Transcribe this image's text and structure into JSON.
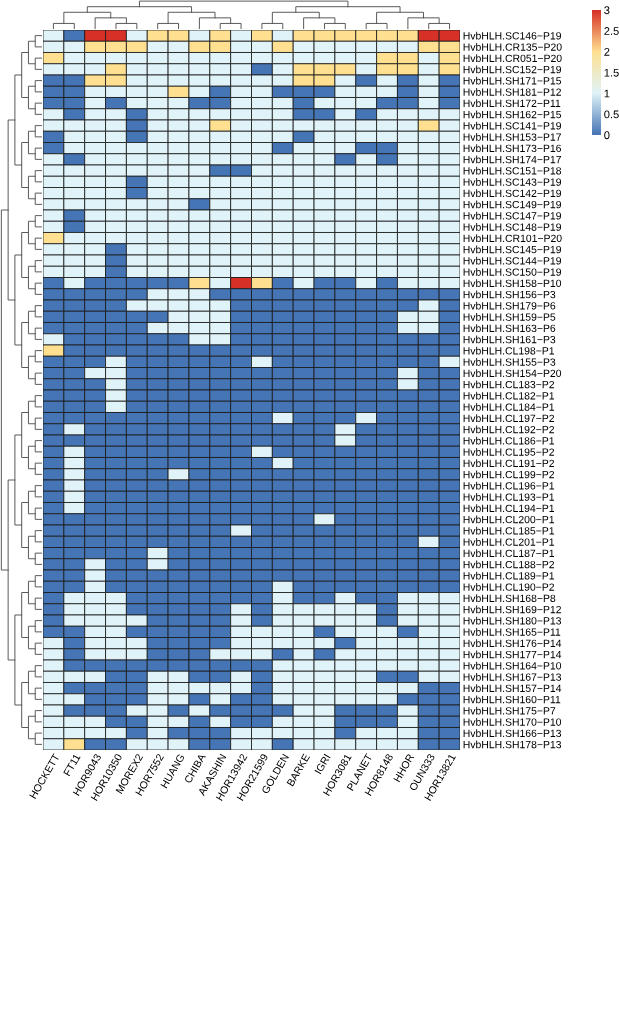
{
  "chart_data": {
    "type": "heatmap",
    "categories": [
      "HOCKETT",
      "FT11",
      "HOR9043",
      "HOR10350",
      "MOREX2",
      "HOR7552",
      "HUANG",
      "CHIBA",
      "AKASHIN",
      "HOR13942",
      "HOR21599",
      "GOLDEN",
      "BARKE",
      "IGRI",
      "HOR3081",
      "PLANET",
      "HOR8148",
      "HHOR",
      "OUN333",
      "HOR13821"
    ],
    "y_categories": [
      "HvbHLH.SC146−P19",
      "HvbHLH.CR135−P20",
      "HvbHLH.CR051−P20",
      "HvbHLH.SC152−P19",
      "HvbHLH.SH171−P15",
      "HvbHLH.SH181−P12",
      "HvbHLH.SH172−P11",
      "HvbHLH.SH162−P15",
      "HvbHLH.SC141−P19",
      "HvbHLH.SH153−P17",
      "HvbHLH.SH173−P16",
      "HvbHLH.SH174−P17",
      "HvbHLH.SC151−P18",
      "HvbHLH.SC143−P19",
      "HvbHLH.SC142−P19",
      "HvbHLH.SC149−P19",
      "HvbHLH.SC147−P19",
      "HvbHLH.SC148−P19",
      "HvbHLH.CR101−P20",
      "HvbHLH.SC145−P19",
      "HvbHLH.SC144−P19",
      "HvbHLH.SC150−P19",
      "HvbHLH.SH158−P10",
      "HvbHLH.SH156−P3",
      "HvbHLH.SH179−P6",
      "HvbHLH.SH159−P5",
      "HvbHLH.SH163−P6",
      "HvbHLH.SH161−P3",
      "HvbHLH.CL198−P1",
      "HvbHLH.SH155−P3",
      "HvbHLH.SH154−P20",
      "HvbHLH.CL183−P2",
      "HvbHLH.CL182−P1",
      "HvbHLH.CL184−P1",
      "HvbHLH.CL197−P2",
      "HvbHLH.CL192−P2",
      "HvbHLH.CL186−P1",
      "HvbHLH.CL195−P2",
      "HvbHLH.CL191−P2",
      "HvbHLH.CL199−P2",
      "HvbHLH.CL196−P1",
      "HvbHLH.CL193−P1",
      "HvbHLH.CL194−P1",
      "HvbHLH.CL200−P1",
      "HvbHLH.CL185−P1",
      "HvbHLH.CL201−P1",
      "HvbHLH.CL187−P1",
      "HvbHLH.CL188−P2",
      "HvbHLH.CL189−P1",
      "HvbHLH.CL190−P2",
      "HvbHLH.SH168−P8",
      "HvbHLH.SH169−P12",
      "HvbHLH.SH180−P13",
      "HvbHLH.SH165−P11",
      "HvbHLH.SH176−P14",
      "HvbHLH.SH177−P14",
      "HvbHLH.SH164−P10",
      "HvbHLH.SH167−P13",
      "HvbHLH.SH157−P14",
      "HvbHLH.SH160−P11",
      "HvbHLH.SH175−P7",
      "HvbHLH.SH170−P10",
      "HvbHLH.SH166−P13",
      "HvbHLH.SH178−P13"
    ],
    "cells": [
      [
        1,
        0,
        3,
        3,
        1,
        2,
        2,
        1,
        2,
        1,
        2,
        1,
        2,
        2,
        2,
        2,
        2,
        2,
        3,
        3
      ],
      [
        1,
        1,
        2,
        2,
        2,
        1,
        1,
        2,
        2,
        1,
        1,
        2,
        1,
        1,
        1,
        1,
        1,
        1,
        2,
        2
      ],
      [
        2,
        1,
        1,
        1,
        1,
        1,
        1,
        1,
        1,
        1,
        1,
        1,
        1,
        1,
        1,
        1,
        2,
        2,
        1,
        2
      ],
      [
        1,
        1,
        1,
        2,
        1,
        1,
        1,
        1,
        1,
        1,
        0,
        1,
        2,
        2,
        2,
        1,
        2,
        2,
        1,
        2
      ],
      [
        0,
        0,
        2,
        2,
        1,
        1,
        1,
        1,
        1,
        1,
        1,
        1,
        2,
        2,
        1,
        0,
        1,
        0,
        1,
        0
      ],
      [
        0,
        0,
        1,
        1,
        1,
        1,
        2,
        1,
        0,
        1,
        1,
        0,
        0,
        0,
        1,
        1,
        1,
        0,
        1,
        0
      ],
      [
        0,
        0,
        1,
        0,
        1,
        1,
        1,
        0,
        0,
        1,
        1,
        1,
        0,
        1,
        1,
        1,
        0,
        0,
        1,
        0
      ],
      [
        1,
        0,
        1,
        1,
        0,
        1,
        1,
        1,
        1,
        1,
        1,
        1,
        0,
        0,
        1,
        0,
        1,
        1,
        1,
        1
      ],
      [
        1,
        1,
        1,
        1,
        0,
        1,
        1,
        1,
        2,
        1,
        1,
        1,
        1,
        1,
        1,
        1,
        1,
        1,
        2,
        1
      ],
      [
        0,
        1,
        1,
        1,
        0,
        1,
        1,
        1,
        1,
        1,
        1,
        1,
        0,
        1,
        1,
        1,
        1,
        1,
        1,
        1
      ],
      [
        0,
        1,
        1,
        1,
        1,
        1,
        1,
        1,
        1,
        1,
        1,
        0,
        1,
        1,
        1,
        0,
        0,
        1,
        1,
        1
      ],
      [
        1,
        0,
        1,
        1,
        1,
        1,
        1,
        1,
        1,
        1,
        1,
        1,
        1,
        1,
        0,
        1,
        0,
        1,
        1,
        1
      ],
      [
        1,
        1,
        1,
        1,
        1,
        1,
        1,
        1,
        0,
        0,
        1,
        1,
        1,
        1,
        1,
        1,
        1,
        1,
        1,
        1
      ],
      [
        1,
        1,
        1,
        1,
        0,
        1,
        1,
        1,
        1,
        1,
        1,
        1,
        1,
        1,
        1,
        1,
        1,
        1,
        1,
        1
      ],
      [
        1,
        1,
        1,
        1,
        0,
        1,
        1,
        1,
        1,
        1,
        1,
        1,
        1,
        1,
        1,
        1,
        1,
        1,
        1,
        1
      ],
      [
        1,
        1,
        1,
        1,
        1,
        1,
        1,
        0,
        1,
        1,
        1,
        1,
        1,
        1,
        1,
        1,
        1,
        1,
        1,
        1
      ],
      [
        1,
        0,
        1,
        1,
        1,
        1,
        1,
        1,
        1,
        1,
        1,
        1,
        1,
        1,
        1,
        1,
        1,
        1,
        1,
        1
      ],
      [
        1,
        0,
        1,
        1,
        1,
        1,
        1,
        1,
        1,
        1,
        1,
        1,
        1,
        1,
        1,
        1,
        1,
        1,
        1,
        1
      ],
      [
        2,
        1,
        1,
        1,
        1,
        1,
        1,
        1,
        1,
        1,
        1,
        1,
        1,
        1,
        1,
        1,
        1,
        1,
        1,
        1
      ],
      [
        1,
        1,
        1,
        0,
        1,
        1,
        1,
        1,
        1,
        1,
        1,
        1,
        1,
        1,
        1,
        1,
        1,
        1,
        1,
        1
      ],
      [
        1,
        1,
        1,
        0,
        1,
        1,
        1,
        1,
        1,
        1,
        1,
        1,
        1,
        1,
        1,
        1,
        1,
        1,
        1,
        1
      ],
      [
        1,
        1,
        1,
        0,
        1,
        1,
        1,
        1,
        1,
        1,
        1,
        1,
        1,
        1,
        1,
        1,
        1,
        1,
        1,
        1
      ],
      [
        0,
        1,
        0,
        0,
        0,
        0,
        0,
        2,
        1,
        3,
        2,
        0,
        1,
        0,
        0,
        1,
        0,
        1,
        1,
        1
      ],
      [
        0,
        0,
        0,
        0,
        0,
        1,
        1,
        1,
        0,
        0,
        0,
        0,
        0,
        0,
        0,
        0,
        0,
        0,
        0,
        0
      ],
      [
        0,
        0,
        0,
        0,
        1,
        1,
        1,
        1,
        1,
        0,
        0,
        0,
        0,
        0,
        0,
        0,
        0,
        0,
        1,
        0
      ],
      [
        0,
        0,
        0,
        0,
        0,
        0,
        1,
        1,
        1,
        0,
        0,
        0,
        0,
        0,
        0,
        0,
        0,
        1,
        1,
        0
      ],
      [
        0,
        0,
        0,
        0,
        0,
        1,
        1,
        1,
        1,
        0,
        0,
        0,
        0,
        0,
        0,
        0,
        0,
        1,
        1,
        0
      ],
      [
        1,
        0,
        0,
        0,
        0,
        0,
        0,
        1,
        1,
        0,
        0,
        0,
        0,
        0,
        0,
        0,
        0,
        0,
        0,
        0
      ],
      [
        2,
        0,
        0,
        0,
        0,
        0,
        0,
        0,
        0,
        0,
        0,
        0,
        0,
        0,
        0,
        0,
        0,
        0,
        0,
        0
      ],
      [
        0,
        0,
        0,
        1,
        0,
        0,
        0,
        0,
        0,
        0,
        1,
        0,
        0,
        0,
        0,
        0,
        0,
        0,
        0,
        1
      ],
      [
        0,
        0,
        1,
        1,
        0,
        0,
        0,
        0,
        0,
        0,
        0,
        0,
        0,
        0,
        0,
        0,
        0,
        1,
        0,
        0
      ],
      [
        0,
        0,
        0,
        1,
        0,
        0,
        0,
        0,
        0,
        0,
        0,
        0,
        0,
        0,
        0,
        0,
        0,
        1,
        0,
        0
      ],
      [
        0,
        0,
        0,
        1,
        0,
        0,
        0,
        0,
        0,
        0,
        0,
        0,
        0,
        0,
        0,
        0,
        0,
        0,
        0,
        0
      ],
      [
        0,
        0,
        0,
        1,
        0,
        0,
        0,
        0,
        0,
        0,
        0,
        0,
        0,
        0,
        0,
        0,
        0,
        0,
        0,
        0
      ],
      [
        0,
        0,
        0,
        0,
        0,
        0,
        0,
        0,
        0,
        0,
        0,
        1,
        0,
        0,
        0,
        1,
        0,
        0,
        0,
        0
      ],
      [
        0,
        1,
        0,
        0,
        0,
        0,
        0,
        0,
        0,
        0,
        0,
        0,
        0,
        0,
        1,
        0,
        0,
        0,
        0,
        0
      ],
      [
        0,
        0,
        0,
        0,
        0,
        0,
        0,
        0,
        0,
        0,
        0,
        0,
        0,
        0,
        1,
        0,
        0,
        0,
        0,
        0
      ],
      [
        0,
        1,
        0,
        0,
        0,
        0,
        0,
        0,
        0,
        0,
        1,
        0,
        0,
        0,
        0,
        0,
        0,
        0,
        0,
        0
      ],
      [
        0,
        1,
        0,
        0,
        0,
        0,
        0,
        0,
        0,
        0,
        0,
        1,
        0,
        0,
        0,
        0,
        0,
        0,
        0,
        0
      ],
      [
        0,
        1,
        0,
        0,
        0,
        0,
        1,
        0,
        0,
        0,
        0,
        0,
        0,
        0,
        0,
        0,
        0,
        0,
        0,
        0
      ],
      [
        0,
        1,
        0,
        0,
        0,
        0,
        0,
        0,
        0,
        0,
        0,
        0,
        0,
        0,
        0,
        0,
        0,
        0,
        0,
        0
      ],
      [
        0,
        1,
        0,
        0,
        0,
        0,
        0,
        0,
        0,
        0,
        0,
        0,
        0,
        0,
        0,
        0,
        0,
        0,
        0,
        0
      ],
      [
        0,
        1,
        0,
        0,
        0,
        0,
        0,
        0,
        0,
        0,
        0,
        0,
        0,
        0,
        0,
        0,
        0,
        0,
        0,
        0
      ],
      [
        0,
        0,
        0,
        0,
        0,
        0,
        0,
        0,
        0,
        0,
        0,
        0,
        0,
        1,
        0,
        0,
        0,
        0,
        0,
        0
      ],
      [
        0,
        0,
        0,
        0,
        0,
        0,
        0,
        0,
        0,
        1,
        0,
        0,
        0,
        0,
        0,
        0,
        0,
        0,
        0,
        0
      ],
      [
        0,
        0,
        0,
        0,
        0,
        0,
        0,
        0,
        0,
        0,
        0,
        0,
        0,
        0,
        0,
        0,
        0,
        0,
        1,
        0
      ],
      [
        0,
        0,
        0,
        0,
        0,
        1,
        0,
        0,
        0,
        0,
        0,
        0,
        0,
        0,
        0,
        0,
        0,
        0,
        0,
        0
      ],
      [
        0,
        0,
        1,
        0,
        0,
        1,
        0,
        0,
        0,
        0,
        0,
        0,
        0,
        0,
        0,
        0,
        0,
        0,
        0,
        0
      ],
      [
        0,
        0,
        1,
        0,
        0,
        0,
        0,
        0,
        0,
        0,
        0,
        0,
        0,
        0,
        0,
        0,
        0,
        0,
        0,
        0
      ],
      [
        0,
        0,
        1,
        0,
        0,
        0,
        0,
        0,
        0,
        0,
        0,
        1,
        0,
        0,
        0,
        0,
        0,
        0,
        0,
        0
      ],
      [
        0,
        1,
        1,
        1,
        0,
        0,
        0,
        0,
        0,
        0,
        0,
        1,
        0,
        0,
        1,
        0,
        0,
        1,
        1,
        1
      ],
      [
        0,
        1,
        1,
        1,
        0,
        0,
        0,
        0,
        0,
        1,
        0,
        1,
        1,
        1,
        1,
        1,
        0,
        1,
        1,
        1
      ],
      [
        0,
        1,
        1,
        1,
        1,
        0,
        0,
        0,
        0,
        1,
        0,
        1,
        1,
        1,
        1,
        1,
        0,
        1,
        1,
        1
      ],
      [
        0,
        0,
        1,
        1,
        0,
        0,
        0,
        0,
        0,
        1,
        1,
        1,
        1,
        0,
        1,
        1,
        1,
        0,
        1,
        1
      ],
      [
        1,
        0,
        1,
        1,
        1,
        0,
        0,
        0,
        0,
        1,
        1,
        1,
        1,
        1,
        0,
        1,
        1,
        1,
        1,
        1
      ],
      [
        1,
        0,
        1,
        1,
        1,
        0,
        0,
        0,
        1,
        1,
        1,
        0,
        1,
        0,
        1,
        1,
        1,
        1,
        1,
        1
      ],
      [
        1,
        0,
        0,
        0,
        0,
        0,
        0,
        0,
        0,
        0,
        0,
        1,
        1,
        1,
        1,
        1,
        1,
        1,
        1,
        1
      ],
      [
        1,
        1,
        1,
        0,
        0,
        1,
        1,
        0,
        0,
        1,
        0,
        1,
        1,
        1,
        1,
        1,
        0,
        0,
        1,
        1
      ],
      [
        1,
        0,
        0,
        0,
        0,
        1,
        1,
        1,
        1,
        1,
        0,
        1,
        1,
        1,
        1,
        1,
        1,
        1,
        0,
        0
      ],
      [
        1,
        1,
        0,
        0,
        0,
        1,
        1,
        0,
        1,
        0,
        0,
        1,
        1,
        1,
        1,
        1,
        1,
        0,
        0,
        0
      ],
      [
        1,
        0,
        0,
        0,
        1,
        1,
        0,
        1,
        0,
        0,
        0,
        0,
        1,
        1,
        0,
        0,
        0,
        1,
        0,
        0
      ],
      [
        1,
        1,
        1,
        0,
        0,
        1,
        1,
        0,
        1,
        0,
        0,
        1,
        1,
        1,
        0,
        0,
        0,
        1,
        0,
        0
      ],
      [
        1,
        1,
        1,
        1,
        0,
        1,
        0,
        0,
        0,
        1,
        1,
        1,
        1,
        1,
        0,
        1,
        1,
        1,
        0,
        0
      ],
      [
        1,
        2,
        0,
        0,
        1,
        1,
        1,
        0,
        0,
        1,
        1,
        0,
        1,
        1,
        1,
        1,
        1,
        1,
        0,
        0
      ]
    ],
    "clim": [
      0,
      3
    ],
    "cticks": [
      0,
      0.5,
      1,
      1.5,
      2,
      2.5,
      3
    ]
  }
}
